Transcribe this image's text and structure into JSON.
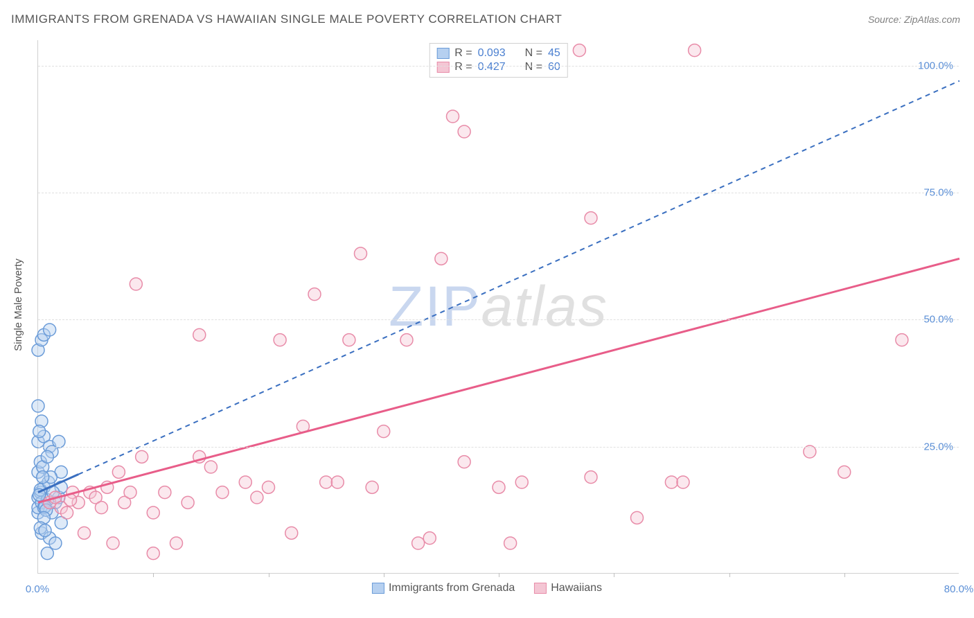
{
  "title": "IMMIGRANTS FROM GRENADA VS HAWAIIAN SINGLE MALE POVERTY CORRELATION CHART",
  "source_prefix": "Source: ",
  "source_name": "ZipAtlas.com",
  "y_axis_label": "Single Male Poverty",
  "watermark_a": "ZIP",
  "watermark_b": "atlas",
  "chart": {
    "type": "scatter",
    "xlim": [
      0,
      80
    ],
    "ylim": [
      0,
      105
    ],
    "yticks": [
      25,
      50,
      75,
      100
    ],
    "ytick_labels": [
      "25.0%",
      "50.0%",
      "75.0%",
      "100.0%"
    ],
    "xticks": [
      0,
      10,
      20,
      30,
      40,
      50,
      60,
      70,
      80
    ],
    "x_min_label": "0.0%",
    "x_max_label": "80.0%",
    "background_color": "#ffffff",
    "grid_color": "#e0e0e0",
    "axis_color": "#d0d0d0",
    "tick_label_color": "#5b8fd6",
    "marker_radius": 9,
    "marker_stroke_width": 1.5,
    "series": [
      {
        "name": "Immigrants from Grenada",
        "fill_color": "#b6d0f0",
        "stroke_color": "#6a9bd8",
        "fill_opacity": 0.45,
        "legend_r": "0.093",
        "legend_n": "45",
        "trend": {
          "x1": 0,
          "y1": 16,
          "x2": 80,
          "y2": 97,
          "color": "#3a6fc0",
          "width": 2,
          "dash": "7 6"
        },
        "trend_solid_to_x": 3.5,
        "points": [
          [
            0,
            12
          ],
          [
            0,
            13
          ],
          [
            0,
            15
          ],
          [
            0.2,
            16
          ],
          [
            0.3,
            14
          ],
          [
            0.5,
            13
          ],
          [
            0.5,
            17
          ],
          [
            0,
            20
          ],
          [
            0.2,
            22
          ],
          [
            0,
            26
          ],
          [
            0.5,
            27
          ],
          [
            0.3,
            30
          ],
          [
            0,
            33
          ],
          [
            0,
            44
          ],
          [
            0.3,
            46
          ],
          [
            0.5,
            47
          ],
          [
            1,
            48
          ],
          [
            0.3,
            8
          ],
          [
            0.8,
            4
          ],
          [
            1,
            7
          ],
          [
            1.2,
            12
          ],
          [
            1.5,
            14
          ],
          [
            1.8,
            15
          ],
          [
            2,
            17
          ],
          [
            2,
            10
          ],
          [
            1.5,
            6
          ],
          [
            1,
            25
          ],
          [
            1.8,
            26
          ],
          [
            2,
            20
          ],
          [
            1.2,
            24
          ],
          [
            0.2,
            16.5
          ],
          [
            0.8,
            14.5
          ],
          [
            0.6,
            13.2
          ],
          [
            0.4,
            21
          ],
          [
            0.9,
            18
          ],
          [
            1.1,
            19
          ],
          [
            0.1,
            15.5
          ],
          [
            0.7,
            12.5
          ],
          [
            1.3,
            16
          ],
          [
            0.5,
            11
          ],
          [
            0.2,
            9
          ],
          [
            0.6,
            8.5
          ],
          [
            0.4,
            19
          ],
          [
            0.8,
            23
          ],
          [
            0.1,
            28
          ]
        ]
      },
      {
        "name": "Hawaiians",
        "fill_color": "#f4c6d4",
        "stroke_color": "#e88ba8",
        "fill_opacity": 0.4,
        "legend_r": "0.427",
        "legend_n": "60",
        "trend": {
          "x1": 0,
          "y1": 14,
          "x2": 80,
          "y2": 62,
          "color": "#e85d89",
          "width": 3,
          "dash": null
        },
        "points": [
          [
            1,
            14
          ],
          [
            1.5,
            15
          ],
          [
            2,
            13
          ],
          [
            2.5,
            12
          ],
          [
            3,
            16
          ],
          [
            3.5,
            14
          ],
          [
            4,
            8
          ],
          [
            4.5,
            16
          ],
          [
            5,
            15
          ],
          [
            5.5,
            13
          ],
          [
            6,
            17
          ],
          [
            6.5,
            6
          ],
          [
            7,
            20
          ],
          [
            7.5,
            14
          ],
          [
            8,
            16
          ],
          [
            9,
            23
          ],
          [
            10,
            12
          ],
          [
            10,
            4
          ],
          [
            11,
            16
          ],
          [
            12,
            6
          ],
          [
            13,
            14
          ],
          [
            14,
            23
          ],
          [
            14,
            47
          ],
          [
            15,
            21
          ],
          [
            16,
            16
          ],
          [
            18,
            18
          ],
          [
            19,
            15
          ],
          [
            20,
            17
          ],
          [
            21,
            46
          ],
          [
            22,
            8
          ],
          [
            23,
            29
          ],
          [
            24,
            55
          ],
          [
            25,
            18
          ],
          [
            26,
            18
          ],
          [
            27,
            46
          ],
          [
            28,
            63
          ],
          [
            29,
            17
          ],
          [
            30,
            28
          ],
          [
            32,
            46
          ],
          [
            33,
            6
          ],
          [
            34,
            7
          ],
          [
            35,
            62
          ],
          [
            36,
            90
          ],
          [
            37,
            87
          ],
          [
            37,
            22
          ],
          [
            40,
            17
          ],
          [
            41,
            6
          ],
          [
            42,
            18
          ],
          [
            47,
            103
          ],
          [
            48,
            19
          ],
          [
            48,
            70
          ],
          [
            52,
            11
          ],
          [
            55,
            18
          ],
          [
            56,
            18
          ],
          [
            57,
            103
          ],
          [
            67,
            24
          ],
          [
            70,
            20
          ],
          [
            75,
            46
          ],
          [
            8.5,
            57
          ],
          [
            2.8,
            14.5
          ]
        ]
      }
    ]
  },
  "legend_top": {
    "r_label": "R = ",
    "n_label": "N = "
  },
  "legend_bottom": {
    "items": [
      "Immigrants from Grenada",
      "Hawaiians"
    ]
  }
}
